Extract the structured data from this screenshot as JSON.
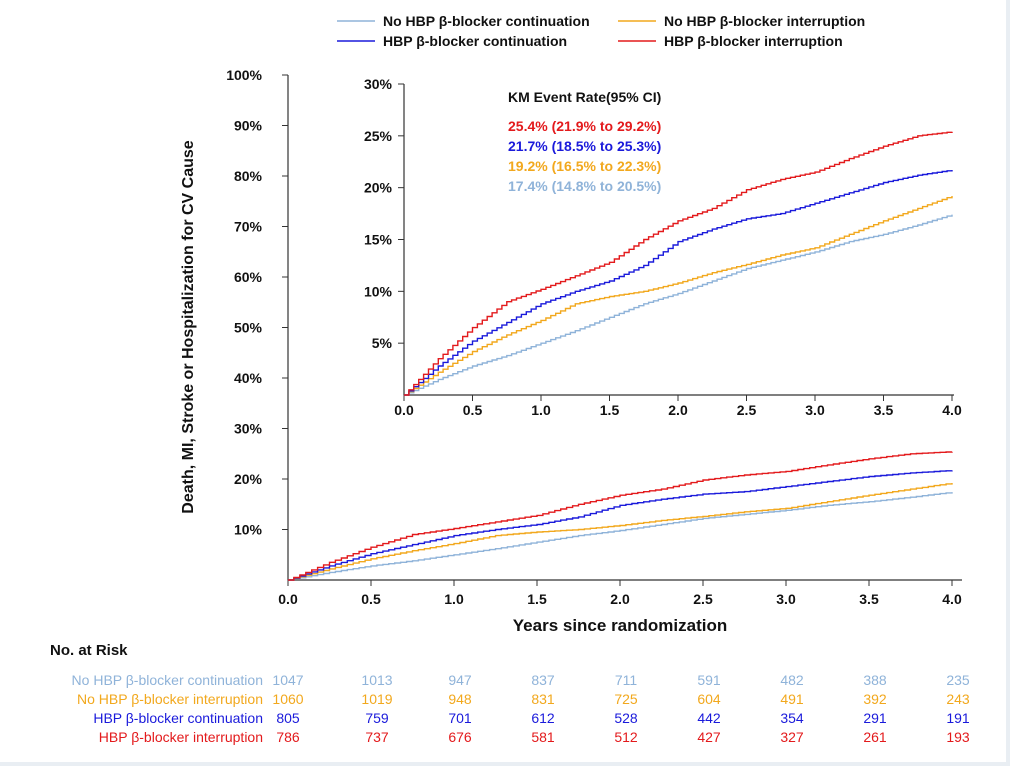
{
  "legend": [
    {
      "key": "no_hbp_cont",
      "label": "No HBP β-blocker continuation"
    },
    {
      "key": "no_hbp_int",
      "label": "No HBP β-blocker interruption"
    },
    {
      "key": "hbp_cont",
      "label": "HBP β-blocker continuation"
    },
    {
      "key": "hbp_int",
      "label": "HBP β-blocker interruption"
    }
  ],
  "colors": {
    "no_hbp_cont": "#8fb3d9",
    "no_hbp_int": "#f2a81d",
    "hbp_cont": "#1a1adb",
    "hbp_int": "#e31a1c"
  },
  "inset": {
    "title": "KM Event Rate(95% CI)",
    "rates": [
      {
        "key": "hbp_int",
        "text": "25.4% (21.9% to 29.2%)"
      },
      {
        "key": "hbp_cont",
        "text": "21.7% (18.5% to 25.3%)"
      },
      {
        "key": "no_hbp_int",
        "text": "19.2% (16.5% to 22.3%)"
      },
      {
        "key": "no_hbp_cont",
        "text": "17.4% (14.8% to 20.5%)"
      }
    ],
    "y_ticks": [
      "5%",
      "10%",
      "15%",
      "20%",
      "25%",
      "30%"
    ],
    "x_ticks": [
      "0.0",
      "0.5",
      "1.0",
      "1.5",
      "2.0",
      "2.5",
      "3.0",
      "3.5",
      "4.0"
    ]
  },
  "risk_table": {
    "title": "No. at Risk",
    "rows": [
      {
        "key": "no_hbp_cont",
        "label": "No HBP β-blocker continuation",
        "values": [
          "1047",
          "1013",
          "947",
          "837",
          "711",
          "591",
          "482",
          "388",
          "235"
        ]
      },
      {
        "key": "no_hbp_int",
        "label": "No HBP β-blocker interruption",
        "values": [
          "1060",
          "1019",
          "948",
          "831",
          "725",
          "604",
          "491",
          "392",
          "243"
        ]
      },
      {
        "key": "hbp_cont",
        "label": "HBP β-blocker continuation",
        "values": [
          "805",
          "759",
          "701",
          "612",
          "528",
          "442",
          "354",
          "291",
          "191"
        ]
      },
      {
        "key": "hbp_int",
        "label": "HBP β-blocker interruption",
        "values": [
          "786",
          "737",
          "676",
          "581",
          "512",
          "427",
          "327",
          "261",
          "193"
        ]
      }
    ]
  },
  "chart_data": {
    "type": "line",
    "xlabel": "Years since randomization",
    "ylabel": "Death, MI, Stroke or Hospitalization for CV Cause",
    "xlim": [
      0,
      4
    ],
    "ylim": [
      0,
      100
    ],
    "x_ticks": [
      "0.0",
      "0.5",
      "1.0",
      "1.5",
      "2.0",
      "2.5",
      "3.0",
      "3.5",
      "4.0"
    ],
    "y_ticks": [
      "10%",
      "20%",
      "30%",
      "40%",
      "50%",
      "60%",
      "70%",
      "80%",
      "90%",
      "100%"
    ],
    "legend_position": "top",
    "x": [
      0,
      0.25,
      0.5,
      0.75,
      1.0,
      1.25,
      1.5,
      1.75,
      2.0,
      2.25,
      2.5,
      2.75,
      3.0,
      3.25,
      3.5,
      3.75,
      4.0
    ],
    "series": [
      {
        "key": "hbp_int",
        "name": "HBP β-blocker interruption",
        "values": [
          0,
          3.5,
          6.5,
          9.0,
          10.2,
          11.5,
          12.8,
          15.0,
          16.8,
          18.0,
          19.8,
          20.8,
          21.5,
          22.8,
          24.0,
          25.0,
          25.4
        ]
      },
      {
        "key": "hbp_cont",
        "name": "HBP β-blocker continuation",
        "values": [
          0,
          2.8,
          5.2,
          7.0,
          8.8,
          10.0,
          11.0,
          12.5,
          14.8,
          16.0,
          17.0,
          17.5,
          18.5,
          19.5,
          20.5,
          21.2,
          21.7
        ]
      },
      {
        "key": "no_hbp_int",
        "name": "No HBP β-blocker interruption",
        "values": [
          0,
          2.2,
          4.2,
          5.8,
          7.2,
          8.8,
          9.5,
          10.0,
          10.8,
          11.8,
          12.6,
          13.5,
          14.2,
          15.5,
          16.8,
          18.0,
          19.2
        ]
      },
      {
        "key": "no_hbp_cont",
        "name": "No HBP β-blocker continuation",
        "values": [
          0,
          1.5,
          2.8,
          3.8,
          5.0,
          6.2,
          7.5,
          8.8,
          9.8,
          11.0,
          12.2,
          13.0,
          13.8,
          14.8,
          15.5,
          16.4,
          17.4
        ]
      }
    ]
  }
}
